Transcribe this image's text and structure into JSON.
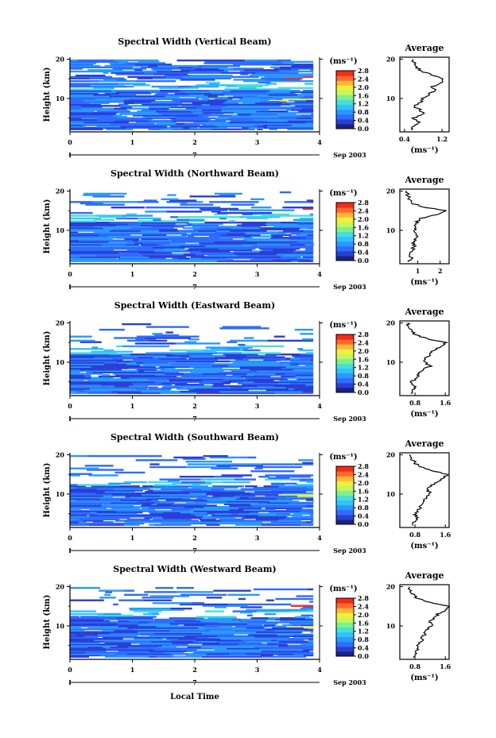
{
  "figure": {
    "colors": [
      "#1a237e",
      "#2a3fd6",
      "#2f6bff",
      "#2a98ff",
      "#30c2ff",
      "#44e0d8",
      "#7ef08e",
      "#c7f55a",
      "#f2ef3a",
      "#ffb63a",
      "#ff6a2a",
      "#f52a1a"
    ],
    "x_label": "Local Time",
    "date_label": "Sep 2003",
    "date_marker": "7",
    "colorbar_unit": "(ms⁻¹)",
    "profile_title": "Average",
    "profile_xlabel": "(ms⁻¹)"
  },
  "chart_data": [
    {
      "type": "heatmap",
      "title": "Spectral Width (Vertical Beam)",
      "ylabel": "Height (km)",
      "xlabel": "Local Time",
      "xlim": [
        0,
        4
      ],
      "ylim": [
        1.5,
        20.5
      ],
      "x_ticks": [
        "0",
        "1",
        "2",
        "3",
        "4"
      ],
      "y_ticks": [
        "10",
        "20"
      ],
      "colorbar": {
        "unit": "(ms⁻¹)",
        "range": [
          0.0,
          2.8
        ],
        "ticks": [
          "2.8",
          "2.4",
          "2.0",
          "1.6",
          "1.2",
          "0.8",
          "0.4",
          "0.0"
        ]
      },
      "profile": {
        "title": "Average",
        "xlabel": "(ms⁻¹)",
        "xlim": [
          0.3,
          1.35
        ],
        "x_ticks": [
          "0.4",
          "1.2"
        ],
        "x_tick_values": [
          0.4,
          1.2
        ],
        "heights": [
          2,
          3,
          4,
          5,
          6,
          7,
          8,
          9,
          10,
          11,
          12,
          13,
          14,
          15,
          16,
          17,
          18,
          19,
          20
        ],
        "values": [
          0.55,
          0.6,
          0.7,
          0.6,
          0.8,
          0.75,
          0.6,
          0.75,
          0.8,
          0.9,
          1.05,
          1.0,
          1.2,
          1.25,
          1.0,
          0.75,
          0.65,
          0.6,
          0.58
        ]
      }
    },
    {
      "type": "heatmap",
      "title": "Spectral Width (Northward Beam)",
      "ylabel": "Height (km)",
      "xlabel": "Local Time",
      "xlim": [
        0,
        4
      ],
      "ylim": [
        1.5,
        20.5
      ],
      "x_ticks": [
        "0",
        "1",
        "2",
        "3",
        "4"
      ],
      "y_ticks": [
        "10",
        "20"
      ],
      "colorbar": {
        "unit": "(ms⁻¹)",
        "range": [
          0.0,
          2.8
        ],
        "ticks": [
          "2.8",
          "2.4",
          "2.0",
          "1.6",
          "1.2",
          "0.8",
          "0.4",
          "0.0"
        ]
      },
      "profile": {
        "title": "Average",
        "xlabel": "(ms⁻¹)",
        "xlim": [
          0.2,
          2.4
        ],
        "x_ticks": [
          "1",
          "2"
        ],
        "x_tick_values": [
          1,
          2
        ],
        "heights": [
          2,
          3,
          4,
          5,
          6,
          7,
          8,
          9,
          10,
          11,
          12,
          13,
          14,
          15,
          16,
          17,
          18,
          19,
          20
        ],
        "values": [
          0.6,
          0.7,
          0.65,
          0.75,
          0.85,
          0.8,
          0.9,
          1.0,
          0.85,
          0.9,
          0.95,
          1.1,
          1.9,
          2.2,
          1.2,
          0.7,
          0.6,
          0.55,
          0.5
        ]
      }
    },
    {
      "type": "heatmap",
      "title": "Spectral Width (Eastward Beam)",
      "ylabel": "Height (km)",
      "xlabel": "Local Time",
      "xlim": [
        0,
        4
      ],
      "ylim": [
        1.5,
        20.5
      ],
      "x_ticks": [
        "0",
        "1",
        "2",
        "3",
        "4"
      ],
      "y_ticks": [
        "10",
        "20"
      ],
      "colorbar": {
        "unit": "(ms⁻¹)",
        "range": [
          0.0,
          2.8
        ],
        "ticks": [
          "2.8",
          "2.4",
          "2.0",
          "1.6",
          "1.2",
          "0.8",
          "0.4",
          "0.0"
        ]
      },
      "profile": {
        "title": "Average",
        "xlabel": "(ms⁻¹)",
        "xlim": [
          0.4,
          1.7
        ],
        "x_ticks": [
          "0.8",
          "1.6"
        ],
        "x_tick_values": [
          0.8,
          1.6
        ],
        "heights": [
          2,
          3,
          4,
          5,
          6,
          7,
          8,
          9,
          10,
          11,
          12,
          13,
          14,
          15,
          16,
          17,
          18,
          19,
          20
        ],
        "values": [
          0.7,
          0.75,
          0.8,
          0.7,
          0.85,
          0.9,
          1.0,
          1.2,
          1.05,
          1.1,
          1.2,
          1.3,
          1.5,
          1.6,
          1.1,
          0.8,
          0.7,
          0.65,
          0.6
        ]
      }
    },
    {
      "type": "heatmap",
      "title": "Spectral Width (Southward Beam)",
      "ylabel": "Height (km)",
      "xlabel": "Local Time",
      "xlim": [
        0,
        4
      ],
      "ylim": [
        1.5,
        20.5
      ],
      "x_ticks": [
        "0",
        "1",
        "2",
        "3",
        "4"
      ],
      "y_ticks": [
        "10",
        "20"
      ],
      "colorbar": {
        "unit": "(ms⁻¹)",
        "range": [
          0.0,
          2.8
        ],
        "ticks": [
          "2.8",
          "2.4",
          "2.0",
          "1.6",
          "1.2",
          "0.8",
          "0.4",
          "0.0"
        ]
      },
      "profile": {
        "title": "Average",
        "xlabel": "(ms⁻¹)",
        "xlim": [
          0.4,
          1.7
        ],
        "x_ticks": [
          "0.8",
          "1.6"
        ],
        "x_tick_values": [
          0.8,
          1.6
        ],
        "heights": [
          2,
          3,
          4,
          5,
          6,
          7,
          8,
          9,
          10,
          11,
          12,
          13,
          14,
          15,
          16,
          17,
          18,
          19,
          20
        ],
        "values": [
          0.75,
          0.8,
          0.85,
          0.8,
          0.9,
          0.95,
          1.0,
          1.1,
          1.2,
          1.15,
          1.2,
          1.35,
          1.55,
          1.65,
          1.25,
          0.9,
          0.8,
          0.7,
          0.65
        ]
      }
    },
    {
      "type": "heatmap",
      "title": "Spectral Width (Westward Beam)",
      "ylabel": "Height (km)",
      "xlabel": "Local Time",
      "xlim": [
        0,
        4
      ],
      "ylim": [
        1.5,
        20.5
      ],
      "x_ticks": [
        "0",
        "1",
        "2",
        "3",
        "4"
      ],
      "y_ticks": [
        "10",
        "20"
      ],
      "colorbar": {
        "unit": "(ms⁻¹)",
        "range": [
          0.0,
          2.8
        ],
        "ticks": [
          "2.8",
          "2.4",
          "2.0",
          "1.6",
          "1.2",
          "0.8",
          "0.4",
          "0.0"
        ]
      },
      "profile": {
        "title": "Average",
        "xlabel": "(ms⁻¹)",
        "xlim": [
          0.4,
          1.7
        ],
        "x_ticks": [
          "0.8",
          "1.6"
        ],
        "x_tick_values": [
          0.8,
          1.6
        ],
        "heights": [
          2,
          3,
          4,
          5,
          6,
          7,
          8,
          9,
          10,
          11,
          12,
          13,
          14,
          15,
          16,
          17,
          18,
          19,
          20
        ],
        "values": [
          0.75,
          0.8,
          0.9,
          0.85,
          0.95,
          1.0,
          1.05,
          1.1,
          1.25,
          1.2,
          1.3,
          1.4,
          1.6,
          1.7,
          1.2,
          0.85,
          0.75,
          0.7,
          0.65
        ]
      }
    }
  ]
}
